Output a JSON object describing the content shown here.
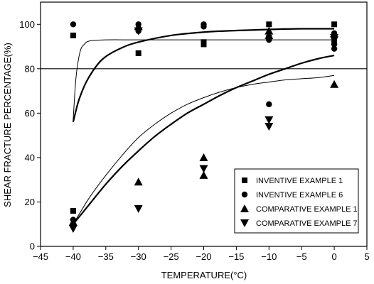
{
  "chart_data": {
    "type": "scatter",
    "xlabel": "TEMPERATURE(°C)",
    "ylabel": "SHEAR FRACTURE PERCENTAGE(%)",
    "xlim": [
      -45,
      5
    ],
    "ylim": [
      0,
      110
    ],
    "xticks": [
      -45,
      -40,
      -35,
      -30,
      -25,
      -20,
      -15,
      -10,
      -5,
      0,
      5
    ],
    "yticks": [
      0,
      20,
      40,
      60,
      80,
      100
    ],
    "reference_line_y": 80,
    "grid": false,
    "legend_position": "lower-right",
    "series": [
      {
        "name": "INVENTIVE EXAMPLE 1",
        "marker": "square",
        "points": [
          [
            -40,
            95
          ],
          [
            -40,
            16
          ],
          [
            -30,
            87
          ],
          [
            -20,
            92
          ],
          [
            -20,
            91
          ],
          [
            -10,
            100
          ],
          [
            -10,
            94
          ],
          [
            0,
            100
          ],
          [
            0,
            92
          ]
        ]
      },
      {
        "name": "INVENTIVE EXAMPLE 6",
        "marker": "circle",
        "points": [
          [
            -40,
            100
          ],
          [
            -40,
            12
          ],
          [
            -30,
            100
          ],
          [
            -30,
            97
          ],
          [
            -20,
            100
          ],
          [
            -20,
            99
          ],
          [
            -10,
            94
          ],
          [
            -10,
            93
          ],
          [
            -10,
            64
          ],
          [
            0,
            96
          ],
          [
            0,
            91
          ],
          [
            0,
            89
          ]
        ]
      },
      {
        "name": "COMPARATIVE EXAMPLE 1",
        "marker": "triangle-up",
        "points": [
          [
            -40,
            11
          ],
          [
            -30,
            99
          ],
          [
            -30,
            29
          ],
          [
            -20,
            40
          ],
          [
            -20,
            32
          ],
          [
            -10,
            97
          ],
          [
            -10,
            95
          ],
          [
            0,
            73
          ]
        ]
      },
      {
        "name": "COMPARATIVE EXAMPLE 7",
        "marker": "triangle-down",
        "points": [
          [
            -40,
            8
          ],
          [
            -30,
            97
          ],
          [
            -30,
            17
          ],
          [
            -20,
            35
          ],
          [
            -10,
            57
          ],
          [
            -10,
            54
          ],
          [
            0,
            94
          ],
          [
            0,
            93
          ]
        ]
      }
    ],
    "fit_curves": [
      {
        "weight": "thin",
        "points": [
          [
            -40,
            57
          ],
          [
            -39.6,
            75
          ],
          [
            -39.2,
            84
          ],
          [
            -38.8,
            89
          ],
          [
            -38.3,
            91
          ],
          [
            -37.5,
            92.5
          ],
          [
            -35,
            93
          ],
          [
            -30,
            93
          ],
          [
            -20,
            93
          ],
          [
            -10,
            93
          ],
          [
            0,
            93
          ]
        ]
      },
      {
        "weight": "thick",
        "points": [
          [
            -40,
            56
          ],
          [
            -39.5,
            62
          ],
          [
            -39,
            67
          ],
          [
            -38,
            74
          ],
          [
            -36.5,
            81
          ],
          [
            -35,
            85.5
          ],
          [
            -32.5,
            89.5
          ],
          [
            -30,
            92
          ],
          [
            -25,
            95
          ],
          [
            -20,
            96.5
          ],
          [
            -15,
            97.2
          ],
          [
            -10,
            97.7
          ],
          [
            -5,
            98
          ],
          [
            0,
            98
          ]
        ]
      },
      {
        "weight": "thick",
        "points": [
          [
            -40,
            10
          ],
          [
            -37.5,
            19
          ],
          [
            -35,
            28
          ],
          [
            -32.5,
            36
          ],
          [
            -30,
            43
          ],
          [
            -27.5,
            49.5
          ],
          [
            -25,
            55
          ],
          [
            -22.5,
            60
          ],
          [
            -20,
            64
          ],
          [
            -17.5,
            68
          ],
          [
            -15,
            71.5
          ],
          [
            -12.5,
            74.5
          ],
          [
            -10,
            77.5
          ],
          [
            -7.5,
            80
          ],
          [
            -5,
            82.5
          ],
          [
            -2.5,
            84.5
          ],
          [
            0,
            86
          ]
        ]
      },
      {
        "weight": "thin",
        "points": [
          [
            -40,
            10
          ],
          [
            -37.5,
            22
          ],
          [
            -35,
            32
          ],
          [
            -32.5,
            41
          ],
          [
            -30,
            49
          ],
          [
            -27.5,
            55
          ],
          [
            -25,
            60
          ],
          [
            -22.5,
            64
          ],
          [
            -20,
            67
          ],
          [
            -17.5,
            69.5
          ],
          [
            -15,
            71.5
          ],
          [
            -12.5,
            73
          ],
          [
            -10,
            74
          ],
          [
            -7.5,
            75
          ],
          [
            -5,
            75.5
          ],
          [
            -2.5,
            76
          ],
          [
            0,
            77
          ]
        ]
      }
    ]
  }
}
